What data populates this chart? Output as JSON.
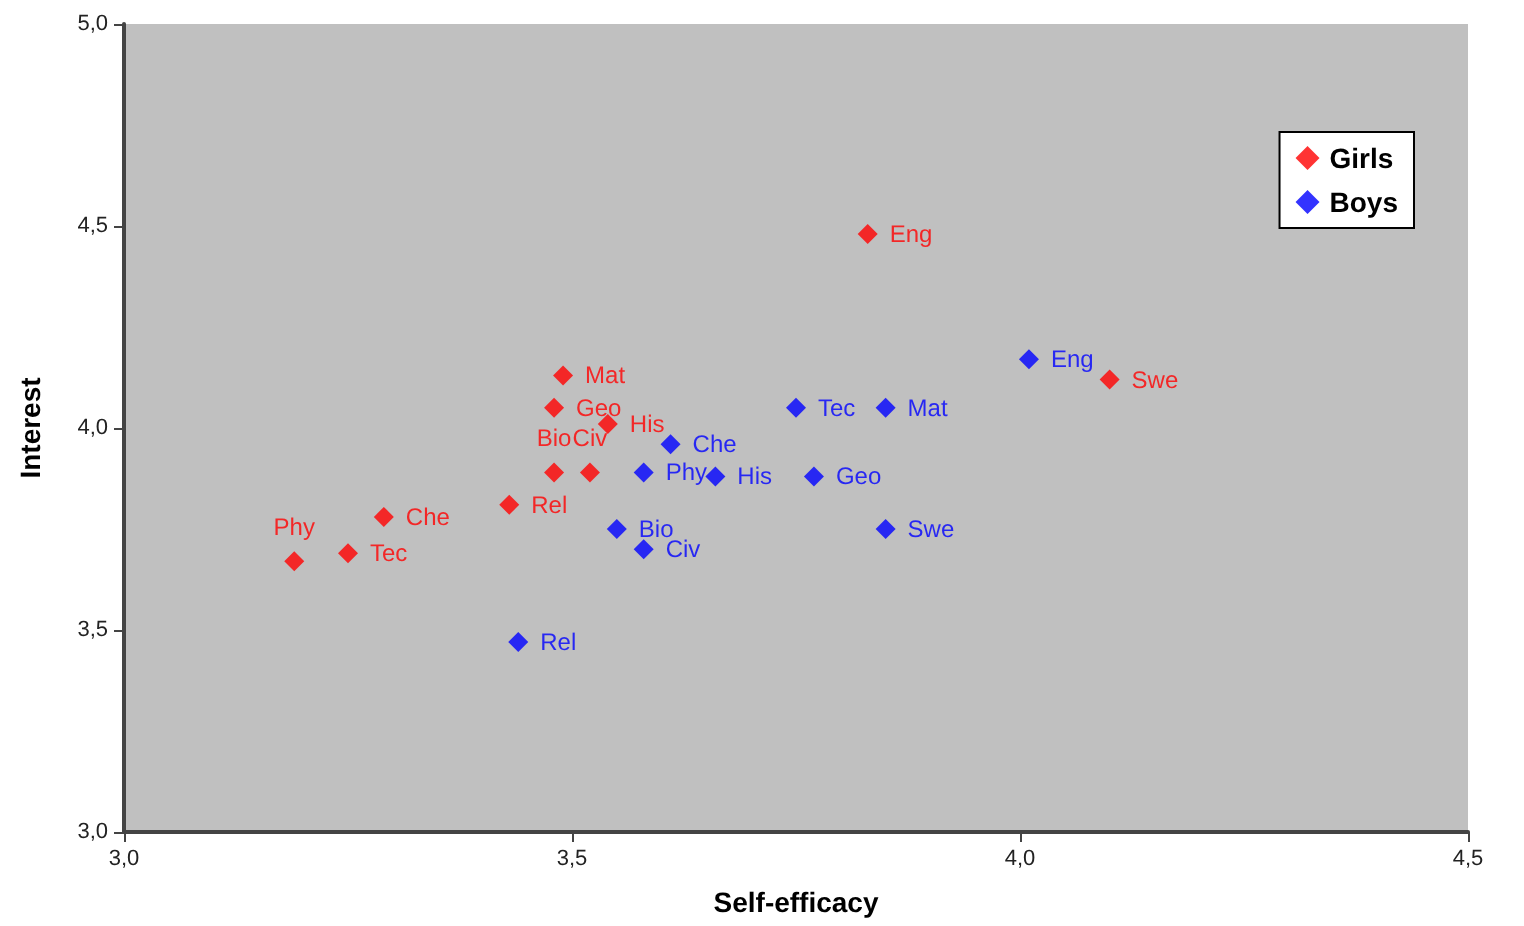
{
  "chart_data": {
    "type": "scatter",
    "xlabel": "Self-efficacy",
    "ylabel": "Interest",
    "series": [
      {
        "name": "Girls",
        "color": "#ff0000",
        "x": [
          3.19,
          3.25,
          3.29,
          3.43,
          3.48,
          3.52,
          3.48,
          3.49,
          3.54,
          3.83,
          4.1
        ],
        "values": [
          3.67,
          3.69,
          3.78,
          3.81,
          3.89,
          3.89,
          4.05,
          4.13,
          4.01,
          4.48,
          4.12
        ]
      },
      {
        "name": "Boys",
        "color": "#0000ff",
        "x": [
          3.44,
          3.55,
          3.58,
          3.58,
          3.61,
          3.66,
          3.75,
          3.85,
          3.77,
          3.85,
          4.01
        ],
        "values": [
          3.47,
          3.75,
          3.7,
          3.89,
          3.96,
          3.88,
          4.05,
          4.05,
          3.88,
          3.75,
          4.17
        ]
      }
    ],
    "annotations": [
      {
        "text": "Phy",
        "x": 3.19,
        "y": 3.67
      },
      {
        "text": "Tec",
        "x": 3.25,
        "y": 3.69
      },
      {
        "text": "Che",
        "x": 3.29,
        "y": 3.78
      },
      {
        "text": "Rel",
        "x": 3.43,
        "y": 3.81
      },
      {
        "text": "Bio",
        "x": 3.48,
        "y": 3.89
      },
      {
        "text": "Civ",
        "x": 3.52,
        "y": 3.89
      },
      {
        "text": "Geo",
        "x": 3.48,
        "y": 4.05
      },
      {
        "text": "Mat",
        "x": 3.49,
        "y": 4.13
      },
      {
        "text": "His",
        "x": 3.54,
        "y": 4.01
      },
      {
        "text": "Eng",
        "x": 3.83,
        "y": 4.48
      },
      {
        "text": "Swe",
        "x": 4.1,
        "y": 4.12
      },
      {
        "text": "Rel",
        "x": 3.44,
        "y": 3.47
      },
      {
        "text": "Bio",
        "x": 3.55,
        "y": 3.75
      },
      {
        "text": "Civ",
        "x": 3.58,
        "y": 3.7
      },
      {
        "text": "Phy",
        "x": 3.58,
        "y": 3.89
      },
      {
        "text": "Che",
        "x": 3.61,
        "y": 3.96
      },
      {
        "text": "His",
        "x": 3.66,
        "y": 3.88
      },
      {
        "text": "Tec",
        "x": 3.75,
        "y": 4.05
      },
      {
        "text": "Mat",
        "x": 3.85,
        "y": 4.05
      },
      {
        "text": "Geo",
        "x": 3.77,
        "y": 3.88
      },
      {
        "text": "Swe",
        "x": 3.85,
        "y": 3.75
      },
      {
        "text": "Eng",
        "x": 4.01,
        "y": 4.17
      }
    ],
    "xlim": [
      3.0,
      4.5
    ],
    "xticks": [
      {
        "value": 3.0,
        "label": "3,0"
      },
      {
        "value": 3.5,
        "label": "3,5"
      },
      {
        "value": 4.0,
        "label": "4,0"
      },
      {
        "value": 4.5,
        "label": "4,5"
      }
    ],
    "ylim": [
      3.0,
      5.0
    ],
    "yticks": [
      {
        "value": 3.0,
        "label": "3,0"
      },
      {
        "value": 3.5,
        "label": "3,5"
      },
      {
        "value": 4.0,
        "label": "4,0"
      },
      {
        "value": 4.5,
        "label": "4,5"
      },
      {
        "value": 5.0,
        "label": "5,0"
      }
    ],
    "grid": false,
    "legend": "top right",
    "marker": "diamond"
  }
}
